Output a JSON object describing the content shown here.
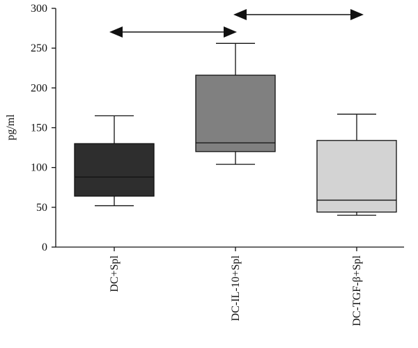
{
  "chart_data": {
    "type": "box",
    "ylabel": "pg/ml",
    "ylim": [
      0,
      300
    ],
    "yticks": [
      0,
      50,
      100,
      150,
      200,
      250,
      300
    ],
    "categories": [
      "DC+Spl",
      "DC-IL-10+Spl",
      "DC-TGF-β+Spl"
    ],
    "boxes": [
      {
        "category": "DC+Spl",
        "min": 52,
        "q1": 64,
        "median": 88,
        "q3": 130,
        "max": 165,
        "color": "#2e2e2e"
      },
      {
        "category": "DC-IL-10+Spl",
        "min": 104,
        "q1": 120,
        "median": 131,
        "q3": 216,
        "max": 256,
        "color": "#808080"
      },
      {
        "category": "DC-TGF-β+Spl",
        "min": 40,
        "q1": 44,
        "median": 59,
        "q3": 134,
        "max": 167,
        "color": "#d3d3d3"
      }
    ],
    "comparisons": [
      {
        "from": "DC+Spl",
        "to": "DC-IL-10+Spl",
        "style": "double-arrow"
      },
      {
        "from": "DC-IL-10+Spl",
        "to": "DC-TGF-β+Spl",
        "style": "double-arrow"
      }
    ],
    "grid": false
  }
}
